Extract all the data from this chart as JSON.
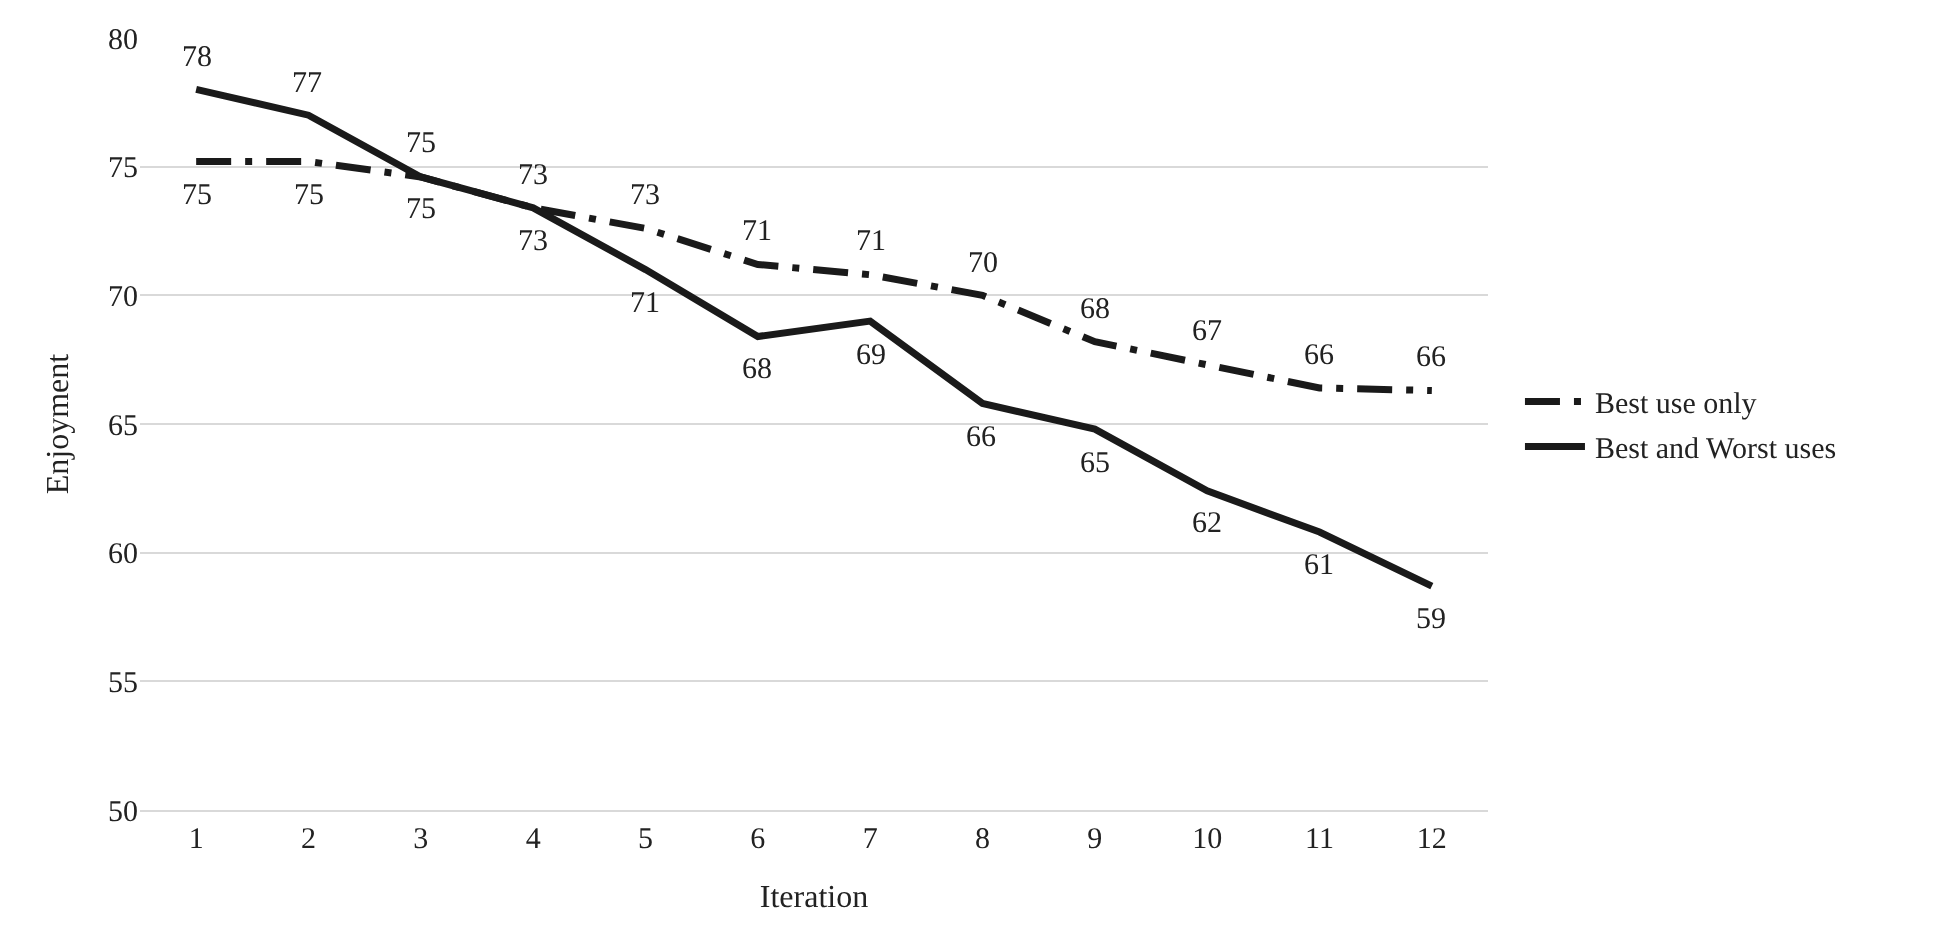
{
  "chart_data": {
    "type": "line",
    "xlabel": "Iteration",
    "ylabel": "Enjoyment",
    "x": [
      1,
      2,
      3,
      4,
      5,
      6,
      7,
      8,
      9,
      10,
      11,
      12
    ],
    "series": [
      {
        "name": "Best use only",
        "color": "#1a1a1a",
        "line_style": "dashed",
        "values": [
          75.2,
          75.2,
          74.6,
          73.4,
          72.6,
          71.2,
          70.8,
          70.0,
          68.2,
          67.3,
          66.4,
          66.3
        ],
        "value_labels": [
          "75",
          "75",
          "75",
          "73",
          "73",
          "71",
          "71",
          "70",
          "68",
          "67",
          "66",
          "66"
        ]
      },
      {
        "name": "Best and Worst uses",
        "color": "#1a1a1a",
        "line_style": "solid",
        "values": [
          78.0,
          77.0,
          74.6,
          73.4,
          71.0,
          68.4,
          69.0,
          65.8,
          64.8,
          62.4,
          60.8,
          58.7
        ],
        "value_labels": [
          "78",
          "77",
          "75",
          "73",
          "71",
          "68",
          "69",
          "66",
          "65",
          "62",
          "61",
          "59"
        ]
      }
    ],
    "xlim": [
      0.5,
      12.5
    ],
    "xticks": [
      1,
      2,
      3,
      4,
      5,
      6,
      7,
      8,
      9,
      10,
      11,
      12
    ],
    "ylim": [
      50,
      80
    ],
    "yticks": [
      50,
      55,
      60,
      65,
      70,
      75,
      80
    ],
    "grid": "y",
    "legend": "right",
    "marker": "none"
  }
}
